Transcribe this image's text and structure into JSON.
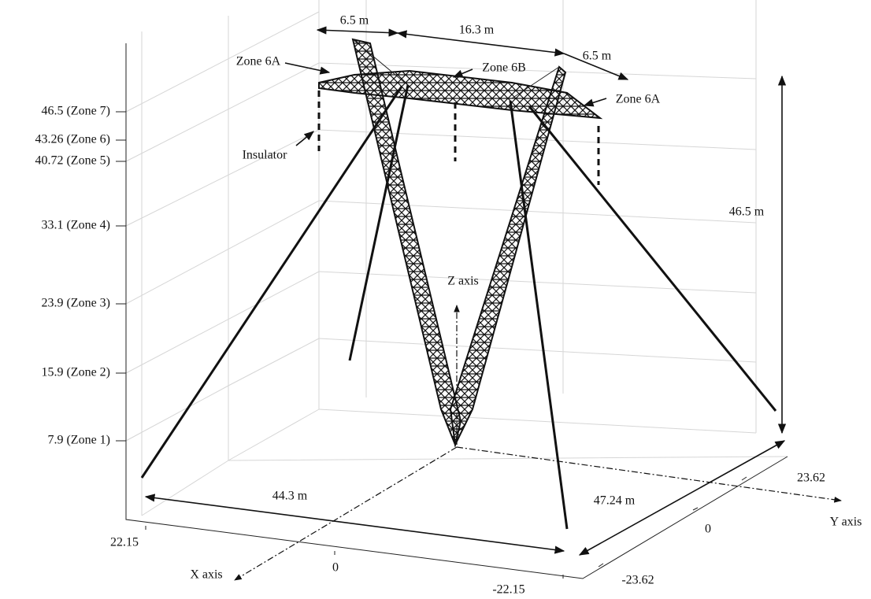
{
  "z_axis": {
    "ticks": [
      "46.5 (Zone 7)",
      "43.26 (Zone 6)",
      "40.72 (Zone 5)",
      "33.1 (Zone 4)",
      "23.9 (Zone 3)",
      "15.9 (Zone 2)",
      "7.9 (Zone 1)"
    ]
  },
  "x_ticks": [
    "22.15",
    "0",
    "-22.15"
  ],
  "y_ticks": [
    "23.62",
    "0",
    "-23.62"
  ],
  "axis_labels": {
    "x": "X axis",
    "y": "Y axis",
    "z": "Z axis"
  },
  "dimensions": {
    "left_arm": "6.5 m",
    "middle": "16.3 m",
    "right_arm": "6.5 m",
    "height": "46.5 m",
    "x_span": "44.3 m",
    "y_span": "47.24 m"
  },
  "labels": {
    "zone_6a_left": "Zone 6A",
    "zone_6b": "Zone 6B",
    "zone_6a_right": "Zone 6A",
    "insulator": "Insulator"
  }
}
